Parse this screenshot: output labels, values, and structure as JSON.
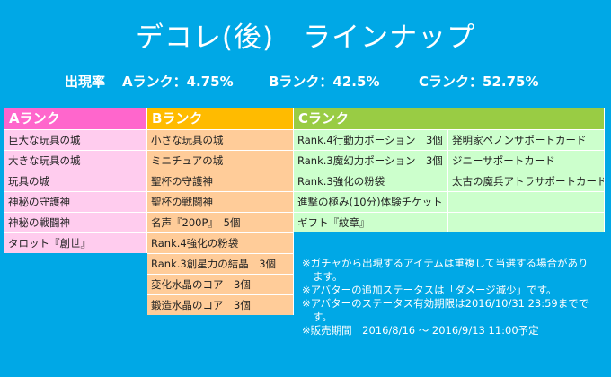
{
  "title": "デコレ(後)　ラインナップ",
  "rates": {
    "label": "出現率",
    "a": "Aランク：4.75%",
    "b": "Bランク：42.5%",
    "c": "Cランク：52.75%"
  },
  "colors": {
    "background": "#00a8e6",
    "a": "#ff66cc",
    "b": "#ffbb00",
    "c": "#99cc44"
  },
  "columns": {
    "a": {
      "header": "Aランク",
      "items": [
        "巨大な玩具の城",
        "大きな玩具の城",
        "玩具の城",
        "神秘の守護神",
        "神秘の戦闘神",
        "タロット『創世』"
      ]
    },
    "b": {
      "header": "Bランク",
      "items": [
        "小さな玩具の城",
        "ミニチュアの城",
        "聖杯の守護神",
        "聖杯の戦闘神",
        "名声『200P』　5個",
        "Rank.4強化の粉袋",
        "Rank.3創星力の結晶　3個",
        "変化水晶のコア　3個",
        "鍛造水晶のコア　3個"
      ]
    },
    "c": {
      "header": "Cランク",
      "left": [
        "Rank.4行動力ポーション　3個",
        "Rank.3魔幻力ポーション　3個",
        "Rank.3強化の粉袋",
        "進撃の極み(10分)体験チケット",
        "ギフト『紋章』"
      ],
      "right": [
        "発明家ペノンサポートカード",
        "ジニーサポートカード",
        "太古の魔兵アトラサポートカード",
        "",
        ""
      ]
    }
  },
  "notes": [
    "※ガチャから出現するアイテムは重複して当選する場合があります。",
    "※アバターの追加ステータスは「ダメージ減少」です。",
    "※アバターのステータス有効期限は2016/10/31 23:59までです。",
    "※販売期間　2016/8/16 ～ 2016/9/13 11:00予定"
  ]
}
